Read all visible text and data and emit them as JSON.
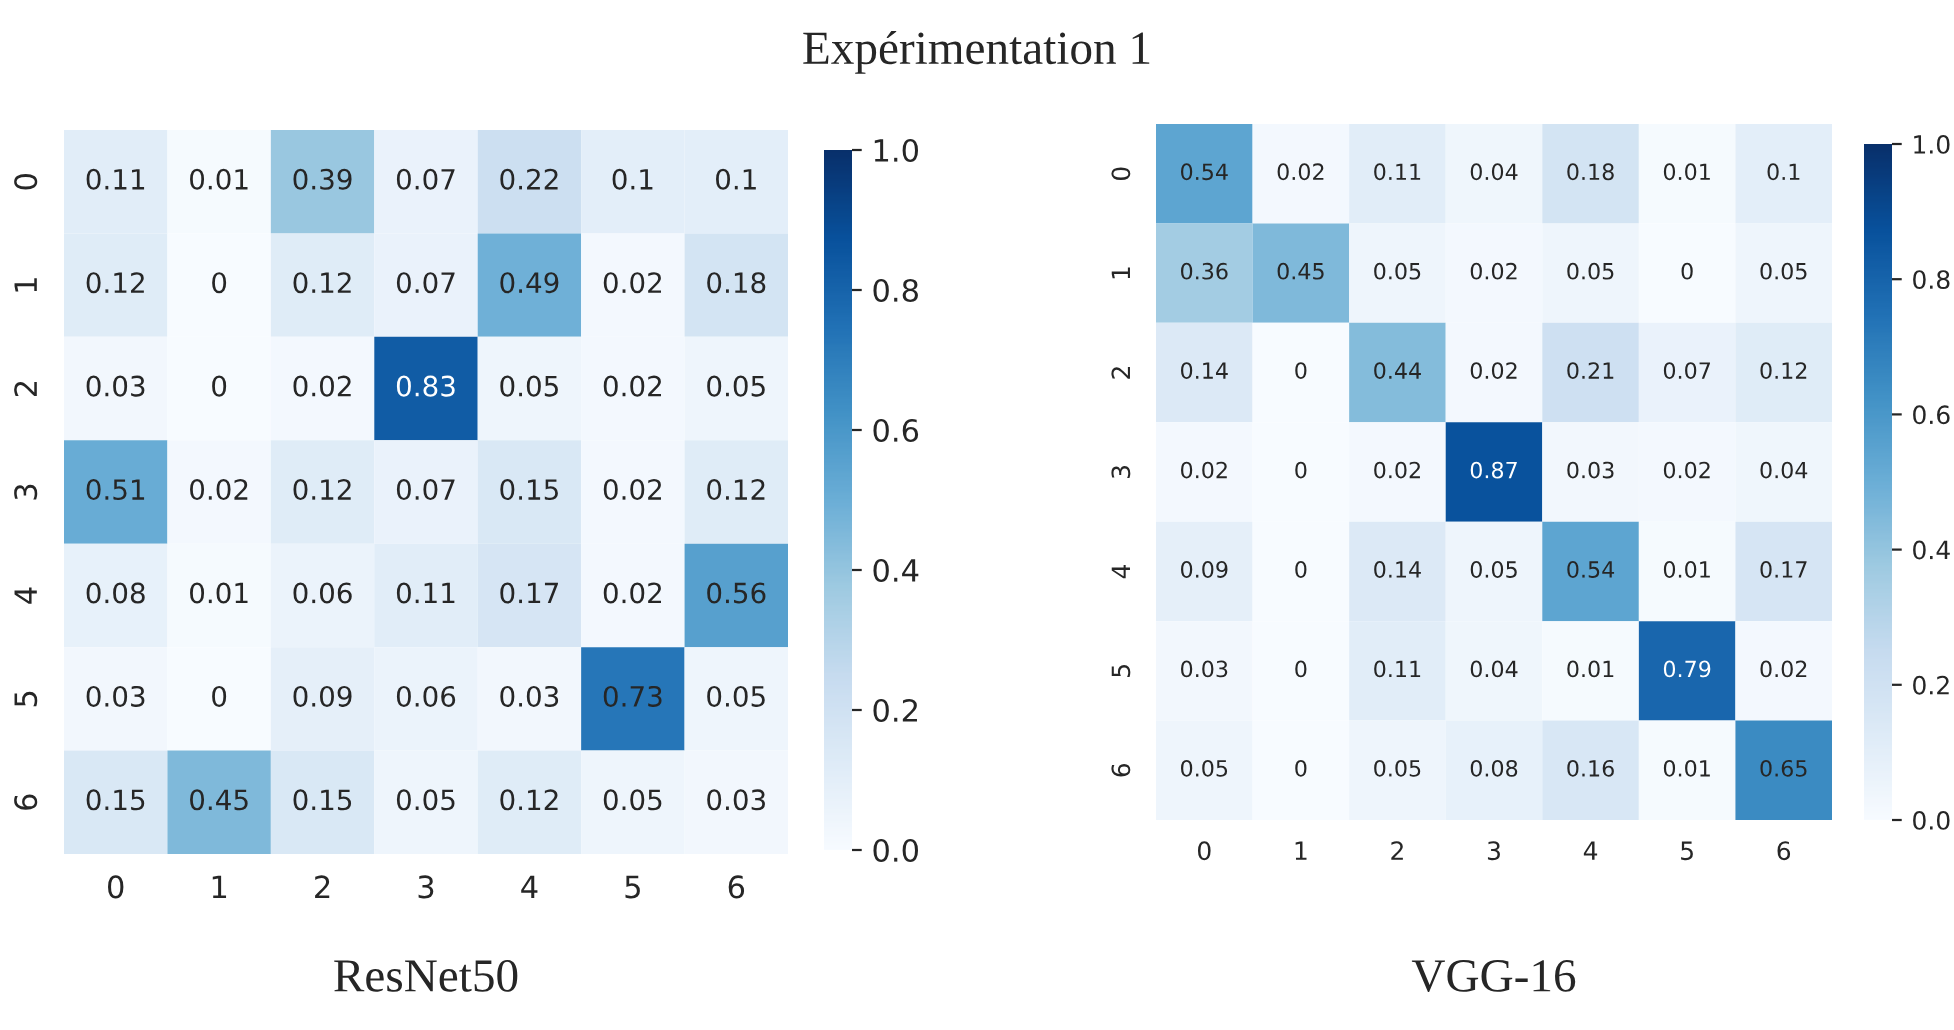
{
  "chart_data": [
    {
      "type": "heatmap",
      "title": "Expérimentation 1",
      "xlabel": "ResNet50",
      "categories": [
        "0",
        "1",
        "2",
        "3",
        "4",
        "5",
        "6"
      ],
      "y_categories": [
        "0",
        "1",
        "2",
        "3",
        "4",
        "5",
        "6"
      ],
      "cells": [
        [
          0.11,
          0.01,
          0.39,
          0.07,
          0.22,
          0.1,
          0.1
        ],
        [
          0.12,
          0,
          0.12,
          0.07,
          0.49,
          0.02,
          0.18
        ],
        [
          0.03,
          0,
          0.02,
          0.83,
          0.05,
          0.02,
          0.05
        ],
        [
          0.51,
          0.02,
          0.12,
          0.07,
          0.15,
          0.02,
          0.12
        ],
        [
          0.08,
          0.01,
          0.06,
          0.11,
          0.17,
          0.02,
          0.56
        ],
        [
          0.03,
          0,
          0.09,
          0.06,
          0.03,
          0.73,
          0.05
        ],
        [
          0.15,
          0.45,
          0.15,
          0.05,
          0.12,
          0.05,
          0.03
        ]
      ],
      "clim": [
        0,
        1
      ],
      "cticks": [
        {
          "value": 0,
          "label": "0.0"
        },
        {
          "value": 0.2,
          "label": "0.2"
        },
        {
          "value": 0.4,
          "label": "0.4"
        },
        {
          "value": 0.6,
          "label": "0.6"
        },
        {
          "value": 0.8,
          "label": "0.8"
        },
        {
          "value": 1,
          "label": "1.0"
        }
      ],
      "data_labels": true
    },
    {
      "type": "heatmap",
      "xlabel": "VGG-16",
      "categories": [
        "0",
        "1",
        "2",
        "3",
        "4",
        "5",
        "6"
      ],
      "y_categories": [
        "0",
        "1",
        "2",
        "3",
        "4",
        "5",
        "6"
      ],
      "cells": [
        [
          0.54,
          0.02,
          0.11,
          0.04,
          0.18,
          0.01,
          0.1
        ],
        [
          0.36,
          0.45,
          0.05,
          0.02,
          0.05,
          0,
          0.05
        ],
        [
          0.14,
          0,
          0.44,
          0.02,
          0.21,
          0.07,
          0.12
        ],
        [
          0.02,
          0,
          0.02,
          0.87,
          0.03,
          0.02,
          0.04
        ],
        [
          0.09,
          0,
          0.14,
          0.05,
          0.54,
          0.01,
          0.17
        ],
        [
          0.03,
          0,
          0.11,
          0.04,
          0.01,
          0.79,
          0.02
        ],
        [
          0.05,
          0,
          0.05,
          0.08,
          0.16,
          0.01,
          0.65
        ]
      ],
      "clim": [
        0,
        1
      ],
      "cticks": [
        {
          "value": 0,
          "label": "0.0"
        },
        {
          "value": 0.2,
          "label": "0.2"
        },
        {
          "value": 0.4,
          "label": "0.4"
        },
        {
          "value": 0.6,
          "label": "0.6"
        },
        {
          "value": 0.8,
          "label": "0.8"
        },
        {
          "value": 1,
          "label": "1.0"
        }
      ],
      "data_labels": true
    }
  ]
}
